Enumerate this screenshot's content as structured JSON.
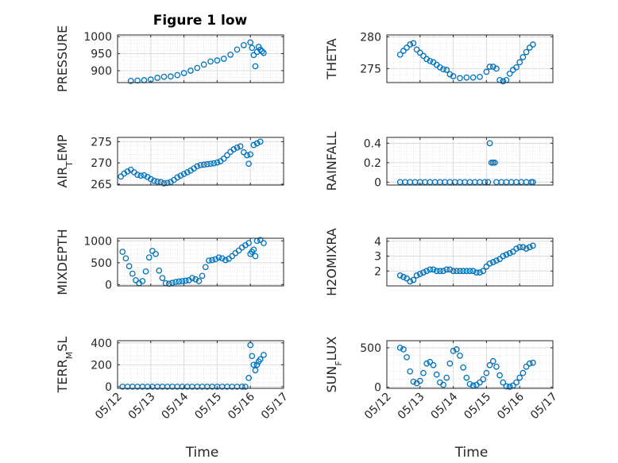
{
  "title": "Figure 1 low",
  "marker_color": "#0072BD",
  "chart_data": [
    {
      "type": "scatter",
      "name": "pressure",
      "ylabel": "PRESSURE",
      "xlim": [
        0,
        5
      ],
      "ylim": [
        865,
        1005
      ],
      "yticks": [
        900,
        950,
        1000
      ],
      "yticklabels": [
        "900",
        "950",
        "1000"
      ],
      "xticks": [
        0,
        1,
        2,
        3,
        4,
        5
      ],
      "xticklabels": [],
      "x": [
        0.4,
        0.6,
        0.8,
        1.0,
        1.2,
        1.4,
        1.6,
        1.8,
        2.0,
        2.2,
        2.4,
        2.6,
        2.8,
        3.0,
        3.2,
        3.4,
        3.6,
        3.8,
        4.0,
        4.05,
        4.1,
        4.15,
        4.2,
        4.25,
        4.3,
        4.35,
        4.4
      ],
      "y": [
        870,
        871,
        872,
        874,
        879,
        882,
        883,
        887,
        893,
        900,
        908,
        918,
        927,
        930,
        935,
        947,
        962,
        975,
        983,
        967,
        946,
        913,
        955,
        970,
        962,
        957,
        952
      ]
    },
    {
      "type": "scatter",
      "name": "theta",
      "ylabel": "THETA",
      "xlim": [
        0,
        5
      ],
      "ylim": [
        272.8,
        280.3
      ],
      "yticks": [
        275,
        280
      ],
      "yticklabels": [
        "275",
        "280"
      ],
      "xticks": [
        0,
        1,
        2,
        3,
        4,
        5
      ],
      "xticklabels": [],
      "x": [
        0.4,
        0.5,
        0.6,
        0.7,
        0.8,
        0.9,
        1.0,
        1.1,
        1.2,
        1.3,
        1.4,
        1.5,
        1.6,
        1.7,
        1.8,
        1.9,
        2.0,
        2.2,
        2.4,
        2.6,
        2.8,
        3.0,
        3.1,
        3.2,
        3.3,
        3.4,
        3.5,
        3.6,
        3.7,
        3.8,
        3.9,
        4.0,
        4.1,
        4.2,
        4.3,
        4.4
      ],
      "y": [
        277.2,
        277.8,
        278.3,
        278.8,
        279.0,
        278.0,
        277.5,
        277.0,
        276.5,
        276.2,
        276.0,
        275.6,
        275.2,
        274.9,
        274.8,
        274.1,
        273.8,
        273.5,
        273.6,
        273.6,
        273.7,
        274.5,
        275.3,
        275.3,
        275.0,
        273.2,
        273.0,
        273.2,
        274.2,
        274.8,
        275.2,
        276.0,
        276.8,
        277.6,
        278.3,
        278.8
      ]
    },
    {
      "type": "scatter",
      "name": "air_temp",
      "ylabel": "AIR_TEMP",
      "xlim": [
        0,
        5
      ],
      "ylim": [
        264.8,
        276
      ],
      "yticks": [
        265,
        270,
        275
      ],
      "yticklabels": [
        "265",
        "270",
        "275"
      ],
      "xticks": [
        0,
        1,
        2,
        3,
        4,
        5
      ],
      "xticklabels": [],
      "x": [
        0.1,
        0.2,
        0.3,
        0.4,
        0.5,
        0.6,
        0.7,
        0.8,
        0.9,
        1.0,
        1.1,
        1.2,
        1.3,
        1.4,
        1.5,
        1.6,
        1.7,
        1.8,
        1.9,
        2.0,
        2.1,
        2.2,
        2.3,
        2.4,
        2.5,
        2.6,
        2.7,
        2.8,
        2.9,
        3.0,
        3.1,
        3.2,
        3.3,
        3.4,
        3.5,
        3.6,
        3.7,
        3.8,
        3.9,
        3.95,
        4.0,
        4.1,
        4.2,
        4.3
      ],
      "y": [
        266.8,
        267.5,
        268.0,
        268.4,
        267.8,
        267.2,
        267.0,
        267.1,
        266.7,
        266.2,
        265.8,
        265.6,
        265.5,
        265.2,
        265.3,
        265.5,
        266.0,
        266.6,
        267.0,
        267.4,
        267.8,
        268.2,
        268.7,
        269.2,
        269.5,
        269.6,
        269.7,
        269.8,
        269.9,
        270.1,
        270.4,
        271.0,
        271.8,
        272.6,
        273.2,
        273.6,
        273.9,
        272.5,
        271.8,
        269.8,
        272.0,
        274.2,
        274.6,
        275.0
      ]
    },
    {
      "type": "scatter",
      "name": "rainfall",
      "ylabel": "RAINFALL",
      "xlim": [
        0,
        5
      ],
      "ylim": [
        -0.03,
        0.46
      ],
      "yticks": [
        0,
        0.2,
        0.4
      ],
      "yticklabels": [
        "0",
        "0.2",
        "0.4"
      ],
      "xticks": [
        0,
        1,
        2,
        3,
        4,
        5
      ],
      "xticklabels": [],
      "x": [
        0.4,
        0.55,
        0.7,
        0.85,
        1.0,
        1.15,
        1.3,
        1.45,
        1.6,
        1.75,
        1.9,
        2.05,
        2.2,
        2.35,
        2.5,
        2.65,
        2.8,
        2.95,
        3.05,
        3.1,
        3.15,
        3.2,
        3.25,
        3.3,
        3.45,
        3.6,
        3.75,
        3.9,
        4.05,
        4.2,
        4.35,
        4.4
      ],
      "y": [
        0,
        0,
        0,
        0,
        0,
        0,
        0,
        0,
        0,
        0,
        0,
        0,
        0,
        0,
        0,
        0,
        0,
        0,
        0,
        0.4,
        0.2,
        0.2,
        0.2,
        0,
        0,
        0,
        0,
        0,
        0,
        0,
        0,
        0
      ]
    },
    {
      "type": "scatter",
      "name": "mixdepth",
      "ylabel": "MIXDEPTH",
      "xlim": [
        0,
        5
      ],
      "ylim": [
        -30,
        1060
      ],
      "yticks": [
        0,
        500,
        1000
      ],
      "yticklabels": [
        "0",
        "500",
        "1000"
      ],
      "xticks": [
        0,
        1,
        2,
        3,
        4,
        5
      ],
      "xticklabels": [],
      "x": [
        0.15,
        0.25,
        0.35,
        0.45,
        0.55,
        0.65,
        0.75,
        0.85,
        0.95,
        1.05,
        1.15,
        1.25,
        1.35,
        1.45,
        1.55,
        1.65,
        1.75,
        1.85,
        1.95,
        2.05,
        2.15,
        2.25,
        2.35,
        2.45,
        2.55,
        2.65,
        2.75,
        2.85,
        2.95,
        3.05,
        3.15,
        3.25,
        3.35,
        3.45,
        3.55,
        3.65,
        3.75,
        3.85,
        3.95,
        4.0,
        4.05,
        4.1,
        4.15,
        4.2,
        4.3,
        4.4
      ],
      "y": [
        750,
        600,
        420,
        250,
        100,
        30,
        80,
        300,
        620,
        770,
        700,
        320,
        150,
        30,
        20,
        40,
        60,
        70,
        80,
        90,
        100,
        150,
        120,
        80,
        200,
        400,
        550,
        560,
        580,
        620,
        600,
        560,
        590,
        650,
        720,
        780,
        850,
        900,
        950,
        700,
        750,
        800,
        650,
        1000,
        1020,
        950
      ]
    },
    {
      "type": "scatter",
      "name": "h2omixra",
      "ylabel": "H2OMIXRA",
      "xlim": [
        0,
        5
      ],
      "ylim": [
        1.0,
        4.2
      ],
      "yticks": [
        2,
        3,
        4
      ],
      "yticklabels": [
        "2",
        "3",
        "4"
      ],
      "xticks": [
        0,
        1,
        2,
        3,
        4,
        5
      ],
      "xticklabels": [],
      "x": [
        0.4,
        0.5,
        0.6,
        0.7,
        0.8,
        0.9,
        1.0,
        1.1,
        1.2,
        1.3,
        1.4,
        1.5,
        1.6,
        1.7,
        1.8,
        1.9,
        2.0,
        2.1,
        2.2,
        2.3,
        2.4,
        2.5,
        2.6,
        2.7,
        2.8,
        2.9,
        3.0,
        3.1,
        3.2,
        3.3,
        3.4,
        3.5,
        3.6,
        3.7,
        3.8,
        3.9,
        4.0,
        4.1,
        4.2,
        4.3,
        4.4
      ],
      "y": [
        1.7,
        1.6,
        1.5,
        1.3,
        1.4,
        1.7,
        1.8,
        1.9,
        2.0,
        2.1,
        2.1,
        2.0,
        2.0,
        2.0,
        2.1,
        2.1,
        2.0,
        2.0,
        2.0,
        2.0,
        2.0,
        2.0,
        2.0,
        1.9,
        1.9,
        2.0,
        2.3,
        2.5,
        2.6,
        2.7,
        2.8,
        3.0,
        3.1,
        3.2,
        3.3,
        3.5,
        3.6,
        3.6,
        3.5,
        3.6,
        3.7
      ]
    },
    {
      "type": "scatter",
      "name": "terr_msl",
      "ylabel": "TERR_MSL",
      "xlim": [
        0,
        5
      ],
      "ylim": [
        -15,
        420
      ],
      "yticks": [
        0,
        200,
        400
      ],
      "yticklabels": [
        "0",
        "200",
        "400"
      ],
      "xticks": [
        0,
        1,
        2,
        3,
        4,
        5
      ],
      "xticklabels": [
        "05/12",
        "05/13",
        "05/14",
        "05/15",
        "05/16",
        "05/17"
      ],
      "xlabel": "Time",
      "x": [
        0.15,
        0.3,
        0.45,
        0.6,
        0.75,
        0.9,
        1.05,
        1.2,
        1.35,
        1.5,
        1.65,
        1.8,
        1.95,
        2.1,
        2.25,
        2.4,
        2.55,
        2.7,
        2.85,
        3.0,
        3.15,
        3.3,
        3.45,
        3.6,
        3.75,
        3.85,
        3.95,
        4.0,
        4.05,
        4.1,
        4.15,
        4.2,
        4.25,
        4.3,
        4.4
      ],
      "y": [
        0,
        0,
        0,
        0,
        0,
        0,
        0,
        0,
        0,
        0,
        0,
        0,
        0,
        0,
        0,
        0,
        0,
        0,
        0,
        0,
        0,
        0,
        0,
        0,
        0,
        0,
        80,
        380,
        280,
        200,
        150,
        200,
        230,
        250,
        290
      ]
    },
    {
      "type": "scatter",
      "name": "sun_flux",
      "ylabel": "SUN_FLUX",
      "xlim": [
        0,
        5
      ],
      "ylim": [
        -15,
        590
      ],
      "yticks": [
        0,
        500
      ],
      "yticklabels": [
        "0",
        "500"
      ],
      "xticks": [
        0,
        1,
        2,
        3,
        4,
        5
      ],
      "xticklabels": [
        "05/12",
        "05/13",
        "05/14",
        "05/15",
        "05/16",
        "05/17"
      ],
      "xlabel": "Time",
      "x": [
        0.4,
        0.5,
        0.6,
        0.7,
        0.8,
        0.9,
        1.0,
        1.1,
        1.2,
        1.3,
        1.4,
        1.5,
        1.6,
        1.7,
        1.8,
        1.9,
        2.0,
        2.1,
        2.2,
        2.3,
        2.4,
        2.5,
        2.6,
        2.7,
        2.8,
        2.9,
        3.0,
        3.1,
        3.2,
        3.3,
        3.4,
        3.5,
        3.6,
        3.7,
        3.8,
        3.9,
        4.0,
        4.1,
        4.2,
        4.3,
        4.4
      ],
      "y": [
        500,
        480,
        380,
        200,
        70,
        50,
        80,
        180,
        300,
        320,
        280,
        160,
        60,
        30,
        120,
        300,
        460,
        480,
        400,
        250,
        120,
        40,
        20,
        30,
        60,
        100,
        180,
        280,
        330,
        260,
        150,
        60,
        10,
        5,
        20,
        60,
        120,
        180,
        260,
        300,
        310
      ]
    }
  ]
}
